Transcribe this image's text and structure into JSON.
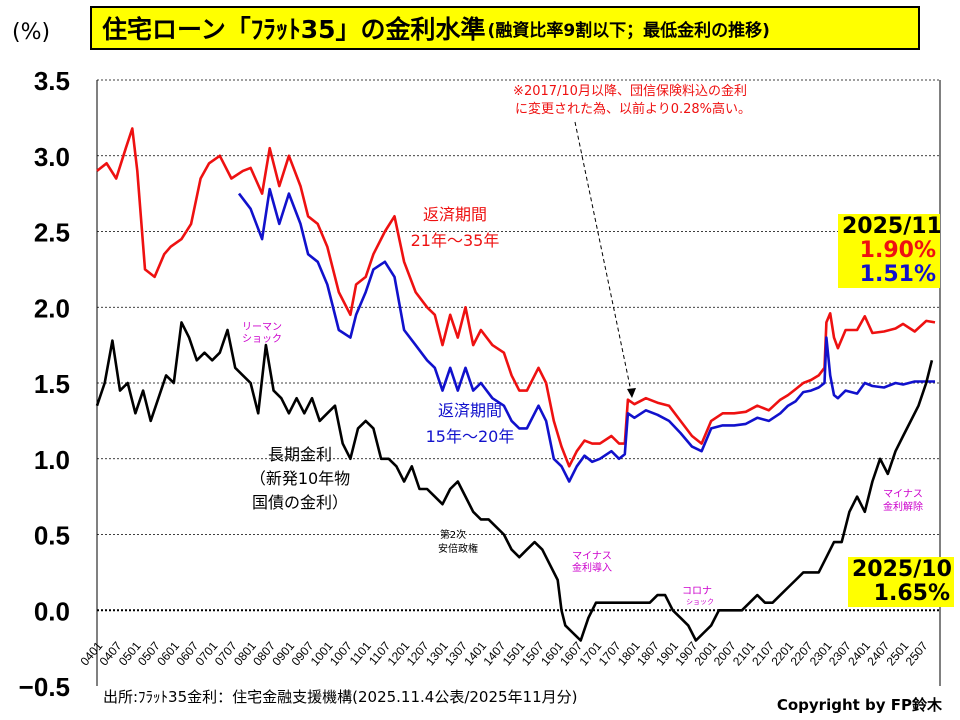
{
  "header": {
    "unit": "(%)",
    "title_main": "住宅ローン「ﾌﾗｯﾄ35」の金利水準",
    "title_sub": "(融資比率9割以下；最低金利の推移)"
  },
  "footer": {
    "source": "出所:ﾌﾗｯﾄ35金利：住宅金融支援機構(2025.11.4公表/2025年11月分)",
    "copyright": "Copyright by FP鈴木"
  },
  "colors": {
    "red_series": "#ee1111",
    "blue_series": "#1111cc",
    "black_series": "#000000",
    "highlight": "#ffff00",
    "event_label": "#cc00cc"
  },
  "annotations": {
    "note_line1": "※2017/10月以降、団信保険料込の金利",
    "note_line2": "に変更された為、以前より0.28%高い。",
    "red_label_1": "返済期間",
    "red_label_2": "21年～35年",
    "blue_label_1": "返済期間",
    "blue_label_2": "15年～20年",
    "black_label_1": "長期金利",
    "black_label_2": "（新発10年物",
    "black_label_3": "国債の金利）",
    "lehman_1": "リーマン",
    "lehman_2": "ショック",
    "abe_1": "第2次",
    "abe_2": "安倍政権",
    "negative_1": "マイナス",
    "negative_2": "金利導入",
    "corona_1": "コロナ",
    "corona_2": "ショック",
    "negative_end_1": "マイナス",
    "negative_end_2": "金利解除"
  },
  "callouts": {
    "flat_date": "2025/11",
    "flat_red_value": "1.90%",
    "flat_blue_value": "1.51%",
    "jgb_date": "2025/10",
    "jgb_value": "1.65%"
  },
  "chart_data": {
    "type": "line",
    "title": "住宅ローン「ﾌﾗｯﾄ35」の金利水準(融資比率9割以下；最低金利の推移)",
    "ylabel": "(%)",
    "xlabel": "",
    "ylim": [
      -0.5,
      3.5
    ],
    "yticks": [
      "3.5",
      "3.0",
      "2.5",
      "2.0",
      "1.5",
      "1.0",
      "0.5",
      "0.0",
      "−0.5"
    ],
    "grid": true,
    "xticks": [
      "0401",
      "0407",
      "0501",
      "0507",
      "0601",
      "0607",
      "0701",
      "0707",
      "0801",
      "0807",
      "0901",
      "0907",
      "1001",
      "1007",
      "1101",
      "1107",
      "1201",
      "1207",
      "1301",
      "1307",
      "1401",
      "1407",
      "1501",
      "1507",
      "1601",
      "1607",
      "1701",
      "1707",
      "1801",
      "1807",
      "1901",
      "1907",
      "2001",
      "2007",
      "2101",
      "2107",
      "2201",
      "2207",
      "2301",
      "2307",
      "2401",
      "2407",
      "2501",
      "2507"
    ],
    "series": [
      {
        "name": "返済期間21年～35年",
        "color": "#ee1111",
        "x": [
          2004.0,
          2004.25,
          2004.5,
          2004.75,
          2004.92,
          2005.05,
          2005.25,
          2005.5,
          2005.75,
          2005.92,
          2006.2,
          2006.45,
          2006.7,
          2006.92,
          2007.2,
          2007.5,
          2007.8,
          2008.0,
          2008.3,
          2008.5,
          2008.75,
          2009.0,
          2009.3,
          2009.5,
          2009.75,
          2010.0,
          2010.3,
          2010.6,
          2010.75,
          2011.0,
          2011.2,
          2011.5,
          2011.75,
          2012.0,
          2012.3,
          2012.6,
          2012.8,
          2013.0,
          2013.2,
          2013.4,
          2013.6,
          2013.8,
          2014.0,
          2014.3,
          2014.6,
          2014.8,
          2015.0,
          2015.2,
          2015.5,
          2015.7,
          2015.9,
          2016.1,
          2016.3,
          2016.5,
          2016.7,
          2016.9,
          2017.1,
          2017.4,
          2017.6,
          2017.75,
          2017.83,
          2018.0,
          2018.3,
          2018.6,
          2018.9,
          2019.2,
          2019.5,
          2019.75,
          2020.0,
          2020.3,
          2020.6,
          2020.9,
          2021.2,
          2021.5,
          2021.8,
          2022.0,
          2022.2,
          2022.4,
          2022.6,
          2022.8,
          2022.95,
          2023.0,
          2023.1,
          2023.2,
          2023.3,
          2023.5,
          2023.8,
          2024.0,
          2024.2,
          2024.5,
          2024.8,
          2025.0,
          2025.3,
          2025.6,
          2025.83
        ],
        "values": [
          2.9,
          2.95,
          2.85,
          3.05,
          3.18,
          2.9,
          2.25,
          2.2,
          2.35,
          2.4,
          2.45,
          2.55,
          2.85,
          2.95,
          3.0,
          2.85,
          2.9,
          2.92,
          2.75,
          3.05,
          2.8,
          3.0,
          2.8,
          2.6,
          2.55,
          2.4,
          2.1,
          1.95,
          2.15,
          2.2,
          2.35,
          2.5,
          2.6,
          2.3,
          2.1,
          2.0,
          1.95,
          1.75,
          1.95,
          1.8,
          2.0,
          1.75,
          1.85,
          1.75,
          1.7,
          1.55,
          1.45,
          1.45,
          1.6,
          1.5,
          1.25,
          1.08,
          0.95,
          1.05,
          1.12,
          1.1,
          1.1,
          1.15,
          1.1,
          1.1,
          1.39,
          1.36,
          1.4,
          1.37,
          1.35,
          1.25,
          1.15,
          1.1,
          1.25,
          1.3,
          1.3,
          1.31,
          1.35,
          1.32,
          1.39,
          1.42,
          1.46,
          1.5,
          1.52,
          1.55,
          1.6,
          1.9,
          1.96,
          1.8,
          1.73,
          1.85,
          1.85,
          1.94,
          1.83,
          1.84,
          1.86,
          1.89,
          1.84,
          1.91,
          1.9
        ]
      },
      {
        "name": "返済期間15年～20年",
        "color": "#1111cc",
        "x": [
          2007.7,
          2008.0,
          2008.3,
          2008.5,
          2008.75,
          2009.0,
          2009.3,
          2009.5,
          2009.75,
          2010.0,
          2010.3,
          2010.6,
          2010.75,
          2011.0,
          2011.2,
          2011.5,
          2011.75,
          2012.0,
          2012.3,
          2012.6,
          2012.8,
          2013.0,
          2013.2,
          2013.4,
          2013.6,
          2013.8,
          2014.0,
          2014.3,
          2014.6,
          2014.8,
          2015.0,
          2015.2,
          2015.5,
          2015.7,
          2015.9,
          2016.1,
          2016.3,
          2016.5,
          2016.7,
          2016.9,
          2017.1,
          2017.4,
          2017.6,
          2017.75,
          2017.83,
          2018.0,
          2018.3,
          2018.6,
          2018.9,
          2019.2,
          2019.5,
          2019.75,
          2020.0,
          2020.3,
          2020.6,
          2020.9,
          2021.2,
          2021.5,
          2021.8,
          2022.0,
          2022.2,
          2022.4,
          2022.6,
          2022.8,
          2022.95,
          2023.0,
          2023.1,
          2023.2,
          2023.3,
          2023.5,
          2023.8,
          2024.0,
          2024.2,
          2024.5,
          2024.8,
          2025.0,
          2025.3,
          2025.6,
          2025.83
        ],
        "values": [
          2.75,
          2.65,
          2.45,
          2.78,
          2.55,
          2.75,
          2.55,
          2.35,
          2.3,
          2.15,
          1.85,
          1.8,
          1.95,
          2.1,
          2.25,
          2.3,
          2.2,
          1.85,
          1.75,
          1.65,
          1.6,
          1.45,
          1.6,
          1.45,
          1.6,
          1.45,
          1.5,
          1.4,
          1.35,
          1.25,
          1.2,
          1.2,
          1.35,
          1.25,
          1.0,
          0.95,
          0.85,
          0.95,
          1.02,
          0.98,
          1.0,
          1.05,
          1.0,
          1.03,
          1.3,
          1.27,
          1.32,
          1.29,
          1.25,
          1.17,
          1.08,
          1.05,
          1.2,
          1.22,
          1.22,
          1.23,
          1.27,
          1.25,
          1.3,
          1.35,
          1.38,
          1.44,
          1.45,
          1.47,
          1.5,
          1.8,
          1.55,
          1.42,
          1.4,
          1.45,
          1.43,
          1.5,
          1.48,
          1.47,
          1.5,
          1.49,
          1.51,
          1.51,
          1.51
        ]
      },
      {
        "name": "長期金利（新発10年物国債の金利）",
        "color": "#000000",
        "x": [
          2004.0,
          2004.2,
          2004.4,
          2004.6,
          2004.8,
          2005.0,
          2005.2,
          2005.4,
          2005.6,
          2005.8,
          2006.0,
          2006.2,
          2006.4,
          2006.6,
          2006.8,
          2007.0,
          2007.2,
          2007.4,
          2007.6,
          2007.8,
          2008.0,
          2008.2,
          2008.4,
          2008.6,
          2008.8,
          2009.0,
          2009.2,
          2009.4,
          2009.6,
          2009.8,
          2010.0,
          2010.2,
          2010.4,
          2010.6,
          2010.8,
          2011.0,
          2011.2,
          2011.4,
          2011.6,
          2011.8,
          2012.0,
          2012.2,
          2012.4,
          2012.6,
          2012.8,
          2013.0,
          2013.2,
          2013.4,
          2013.6,
          2013.8,
          2014.0,
          2014.2,
          2014.4,
          2014.6,
          2014.8,
          2015.0,
          2015.2,
          2015.4,
          2015.6,
          2015.8,
          2016.0,
          2016.1,
          2016.2,
          2016.4,
          2016.6,
          2016.8,
          2017.0,
          2017.2,
          2017.4,
          2017.6,
          2017.8,
          2018.0,
          2018.2,
          2018.4,
          2018.6,
          2018.8,
          2019.0,
          2019.2,
          2019.4,
          2019.6,
          2019.8,
          2020.0,
          2020.2,
          2020.4,
          2020.6,
          2020.8,
          2021.0,
          2021.2,
          2021.4,
          2021.6,
          2021.8,
          2022.0,
          2022.2,
          2022.4,
          2022.6,
          2022.8,
          2023.0,
          2023.2,
          2023.4,
          2023.6,
          2023.8,
          2024.0,
          2024.2,
          2024.4,
          2024.6,
          2024.8,
          2025.0,
          2025.2,
          2025.4,
          2025.6,
          2025.75
        ],
        "values": [
          1.35,
          1.5,
          1.78,
          1.45,
          1.5,
          1.3,
          1.45,
          1.25,
          1.4,
          1.55,
          1.5,
          1.9,
          1.8,
          1.65,
          1.7,
          1.65,
          1.7,
          1.85,
          1.6,
          1.55,
          1.5,
          1.3,
          1.75,
          1.45,
          1.4,
          1.3,
          1.4,
          1.3,
          1.4,
          1.25,
          1.3,
          1.35,
          1.1,
          1.0,
          1.2,
          1.25,
          1.2,
          1.0,
          1.0,
          0.95,
          0.85,
          0.95,
          0.8,
          0.8,
          0.75,
          0.7,
          0.8,
          0.85,
          0.75,
          0.65,
          0.6,
          0.6,
          0.55,
          0.5,
          0.4,
          0.35,
          0.4,
          0.45,
          0.4,
          0.3,
          0.2,
          0.0,
          -0.1,
          -0.15,
          -0.2,
          -0.05,
          0.05,
          0.05,
          0.05,
          0.05,
          0.05,
          0.05,
          0.05,
          0.05,
          0.1,
          0.1,
          0.0,
          -0.05,
          -0.1,
          -0.2,
          -0.15,
          -0.1,
          0.0,
          0.0,
          0.0,
          0.0,
          0.05,
          0.1,
          0.05,
          0.05,
          0.1,
          0.15,
          0.2,
          0.25,
          0.25,
          0.25,
          0.35,
          0.45,
          0.45,
          0.65,
          0.75,
          0.65,
          0.85,
          1.0,
          0.9,
          1.05,
          1.15,
          1.25,
          1.35,
          1.5,
          1.65
        ]
      }
    ]
  }
}
